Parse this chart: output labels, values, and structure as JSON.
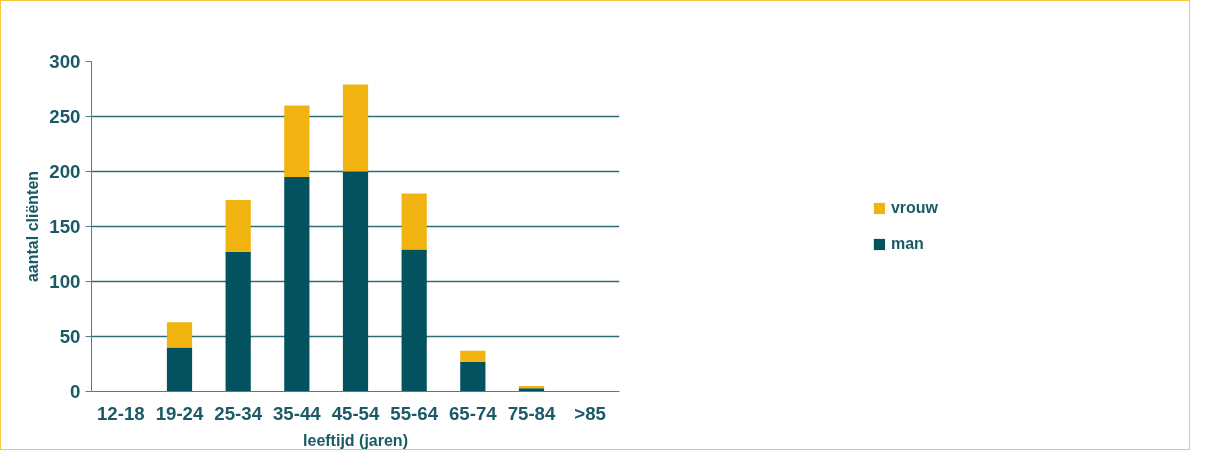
{
  "chart_data": {
    "type": "bar",
    "stacked": true,
    "xlabel": "leeftijd (jaren)",
    "ylabel": "aantal cliënten",
    "categories": [
      "12-18",
      "19-24",
      "25-34",
      "35-44",
      "45-54",
      "55-64",
      "65-74",
      "75-84",
      ">85"
    ],
    "series": [
      {
        "name": "man",
        "color": "#02535f",
        "values": [
          0,
          40,
          127,
          195,
          200,
          129,
          27,
          3,
          0
        ]
      },
      {
        "name": "vrouw",
        "color": "#f0b310",
        "values": [
          0,
          23,
          47,
          65,
          79,
          51,
          10,
          2,
          0
        ]
      }
    ],
    "ylim": [
      0,
      300
    ],
    "yticks": [
      0,
      50,
      100,
      150,
      200,
      250,
      300
    ],
    "grid": "y",
    "legend": "right"
  }
}
